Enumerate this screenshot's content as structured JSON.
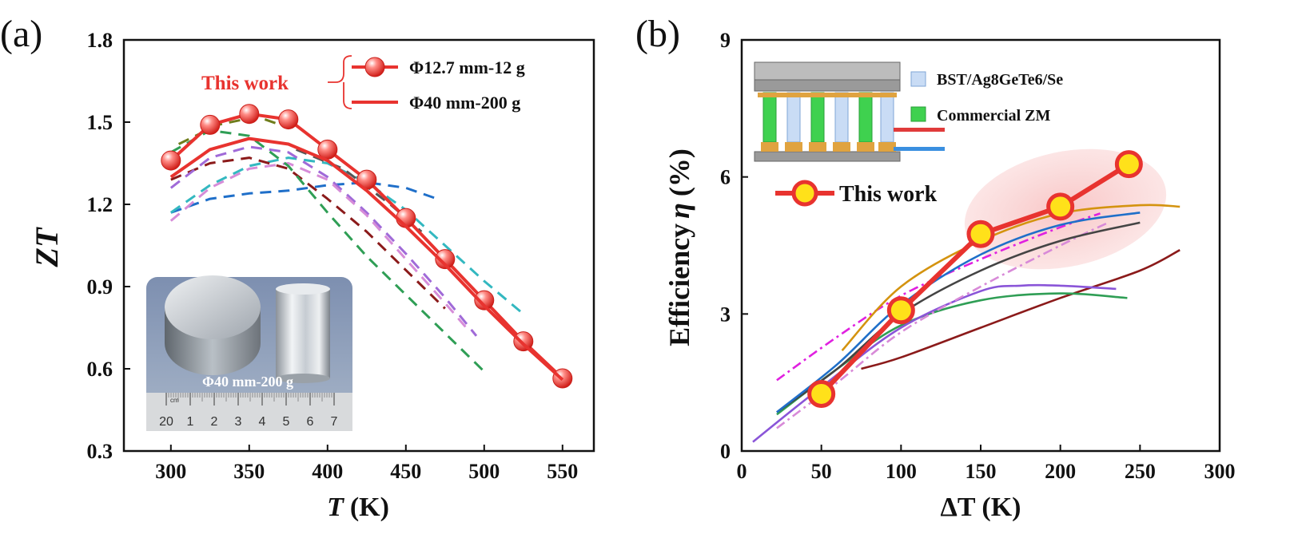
{
  "panel_a_label": "(a)",
  "panel_b_label": "(b)",
  "chart_data": [
    {
      "type": "line",
      "xlabel_var": "T",
      "xlabel_unit": "(K)",
      "ylabel": "ZT",
      "xlim": [
        270,
        570
      ],
      "ylim": [
        0.3,
        1.8
      ],
      "xticks": [
        300,
        350,
        400,
        450,
        500,
        550
      ],
      "yticks": [
        "0.3",
        "0.6",
        "0.9",
        "1.2",
        "1.5",
        "1.8"
      ],
      "legend_group_label": "This work",
      "series": [
        {
          "name": "Φ12.7 mm-12 g",
          "color": "#e8332f",
          "marker": "sphere",
          "x": [
            300,
            325,
            350,
            375,
            400,
            425,
            450,
            475,
            500,
            525,
            550
          ],
          "y": [
            1.36,
            1.49,
            1.53,
            1.51,
            1.4,
            1.29,
            1.15,
            1.0,
            0.85,
            0.7,
            0.565
          ]
        },
        {
          "name": "Φ40 mm-200 g",
          "color": "#e8332f",
          "x": [
            300,
            325,
            350,
            375,
            400,
            425,
            450,
            475,
            500,
            525,
            550
          ],
          "y": [
            1.3,
            1.4,
            1.44,
            1.42,
            1.36,
            1.25,
            1.12,
            0.98,
            0.83,
            0.69,
            0.56
          ]
        },
        {
          "color": "#1f6fc9",
          "dashed": true,
          "x": [
            300,
            325,
            350,
            375,
            400,
            425,
            450,
            470
          ],
          "y": [
            1.17,
            1.22,
            1.24,
            1.25,
            1.27,
            1.28,
            1.26,
            1.22
          ]
        },
        {
          "color": "#33b8c0",
          "dashed": true,
          "x": [
            300,
            325,
            350,
            375,
            400,
            425,
            450,
            475,
            500,
            525
          ],
          "y": [
            1.17,
            1.27,
            1.34,
            1.37,
            1.35,
            1.28,
            1.18,
            1.05,
            0.92,
            0.8
          ]
        },
        {
          "color": "#8b1a1a",
          "dashed": true,
          "x": [
            300,
            325,
            350,
            375,
            400,
            425,
            450,
            475
          ],
          "y": [
            1.29,
            1.35,
            1.37,
            1.33,
            1.22,
            1.1,
            0.96,
            0.82
          ]
        },
        {
          "color": "#a06ad8",
          "dashed": true,
          "x": [
            300,
            325,
            350,
            375,
            400,
            425,
            450,
            475,
            495
          ],
          "y": [
            1.26,
            1.37,
            1.41,
            1.39,
            1.3,
            1.17,
            1.02,
            0.86,
            0.72
          ]
        },
        {
          "color": "#d68cd8",
          "dashed": true,
          "x": [
            300,
            325,
            350,
            375,
            400,
            425,
            450,
            475,
            490
          ],
          "y": [
            1.14,
            1.26,
            1.33,
            1.35,
            1.29,
            1.16,
            1.0,
            0.84,
            0.74
          ]
        },
        {
          "color": "#2f9e55",
          "dashed": true,
          "x": [
            300,
            325,
            350,
            375,
            400,
            425,
            450,
            475,
            500
          ],
          "y": [
            1.39,
            1.47,
            1.45,
            1.34,
            1.17,
            1.01,
            0.87,
            0.73,
            0.59
          ]
        },
        {
          "color": "#6f7d1c",
          "dashed": true,
          "x": [
            305,
            330,
            355,
            375
          ],
          "y": [
            1.42,
            1.49,
            1.52,
            1.48
          ]
        },
        {
          "color": "#555555",
          "dashed": true,
          "x": [
            380,
            410,
            440,
            460
          ],
          "y": [
            1.4,
            1.33,
            1.2,
            1.1
          ]
        }
      ],
      "inset": {
        "caption": "Φ40 mm-200 g",
        "ruler_numbers": [
          "20",
          "1",
          "2",
          "3",
          "4",
          "5",
          "6",
          "7"
        ],
        "ruler_unit": "cm"
      }
    },
    {
      "type": "line",
      "xlabel": "ΔT (K)",
      "ylabel_text": "Efficiency",
      "ylabel_symbol": "η",
      "ylabel_unit": "(%)",
      "xlim": [
        0,
        300
      ],
      "ylim": [
        0,
        9
      ],
      "xticks": [
        0,
        50,
        100,
        150,
        200,
        250,
        300
      ],
      "yticks": [
        0,
        3,
        6,
        9
      ],
      "legend": [
        {
          "label": "BST/Ag8GeTe6/Se",
          "color": "#c9dcf5"
        },
        {
          "label": "Commercial ZM",
          "color": "#3fd14f"
        }
      ],
      "this_work_label": "This work",
      "series": [
        {
          "name": "This work",
          "color": "#e8332f",
          "marker": "yellow-circle",
          "x": [
            50,
            100,
            150,
            200,
            243
          ],
          "y": [
            1.25,
            3.08,
            4.75,
            5.35,
            6.28
          ]
        },
        {
          "color": "#d4930f",
          "x": [
            63,
            100,
            150,
            200,
            250,
            275
          ],
          "y": [
            2.2,
            3.6,
            4.6,
            5.2,
            5.38,
            5.35
          ]
        },
        {
          "color": "#1f6fc9",
          "x": [
            22,
            60,
            100,
            150,
            200,
            250
          ],
          "y": [
            0.85,
            1.9,
            3.2,
            4.3,
            4.95,
            5.22
          ]
        },
        {
          "color": "#444444",
          "x": [
            22,
            60,
            100,
            150,
            200,
            250
          ],
          "y": [
            0.85,
            1.8,
            3.0,
            3.95,
            4.6,
            5.0
          ]
        },
        {
          "color": "#d88ad8",
          "dashed": true,
          "x": [
            22,
            60,
            100,
            150,
            200,
            230
          ],
          "y": [
            0.5,
            1.5,
            2.6,
            3.6,
            4.5,
            5.0
          ]
        },
        {
          "color": "#e020e0",
          "dashed": true,
          "x": [
            22,
            60,
            100,
            150,
            200,
            225
          ],
          "y": [
            1.55,
            2.5,
            3.4,
            4.2,
            4.9,
            5.2
          ]
        },
        {
          "color": "#8a55d8",
          "x": [
            7,
            50,
            100,
            150,
            175,
            200,
            235
          ],
          "y": [
            0.2,
            1.4,
            2.7,
            3.5,
            3.62,
            3.62,
            3.55
          ]
        },
        {
          "color": "#2f9e55",
          "x": [
            22,
            60,
            100,
            150,
            200,
            242
          ],
          "y": [
            0.8,
            1.8,
            2.75,
            3.3,
            3.45,
            3.35
          ]
        },
        {
          "color": "#8b1a1a",
          "x": [
            75,
            100,
            150,
            200,
            250,
            275
          ],
          "y": [
            1.8,
            2.05,
            2.7,
            3.35,
            3.95,
            4.4
          ]
        }
      ]
    }
  ]
}
